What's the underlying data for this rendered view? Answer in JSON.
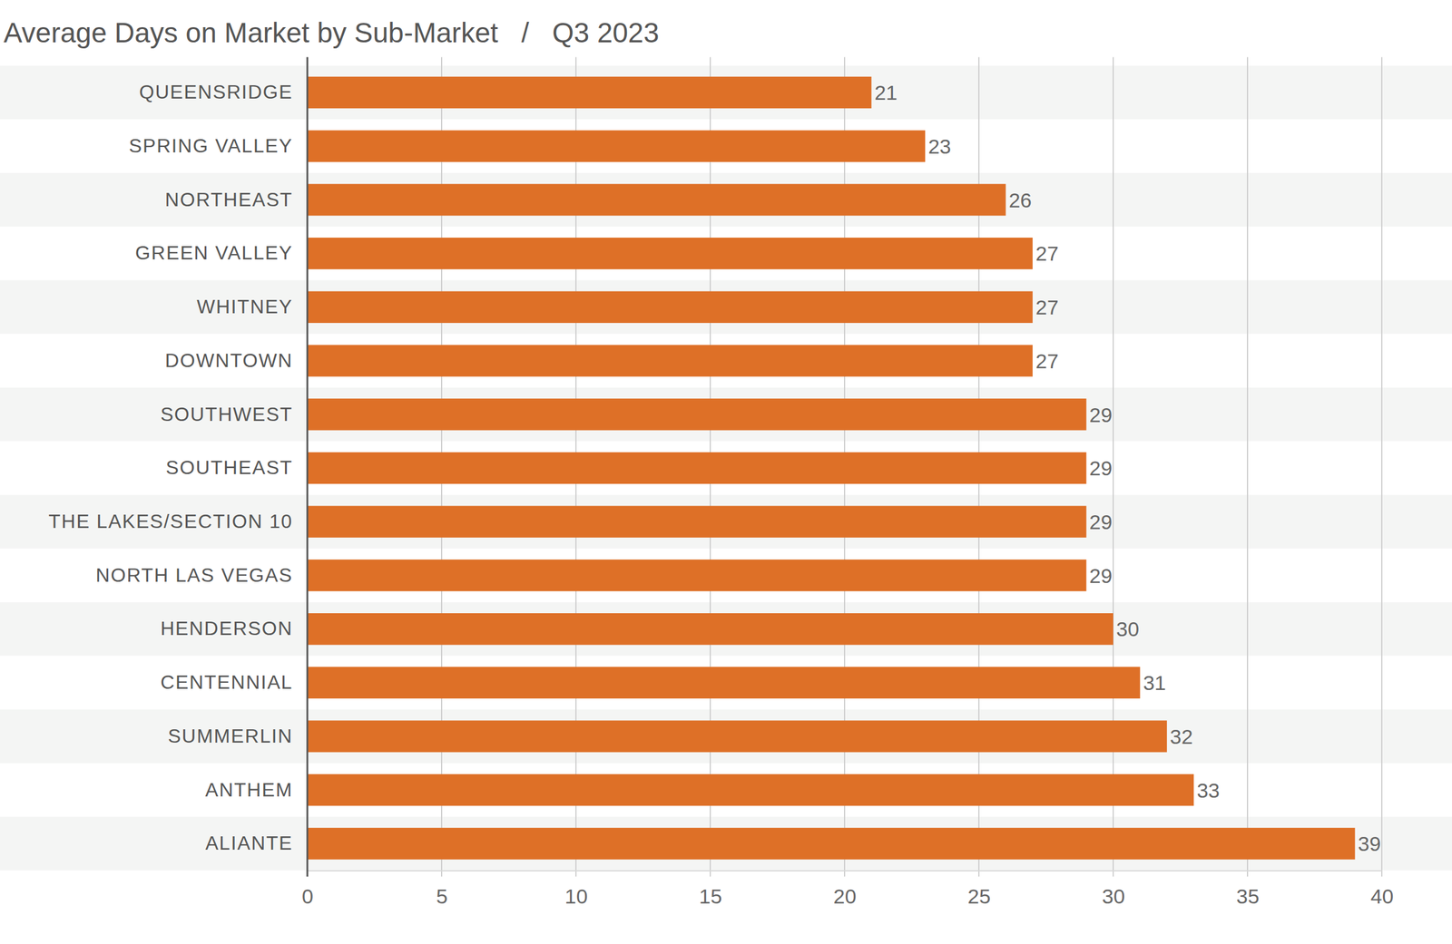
{
  "chart_data": {
    "type": "bar",
    "title": "Average Days on Market by Sub-Market   /   Q3 2023",
    "orientation": "horizontal",
    "categories": [
      "QUEENSRIDGE",
      "SPRING VALLEY",
      "NORTHEAST",
      "GREEN VALLEY",
      "WHITNEY",
      "DOWNTOWN",
      "SOUTHWEST",
      "SOUTHEAST",
      "THE LAKES/SECTION 10",
      "NORTH LAS VEGAS",
      "HENDERSON",
      "CENTENNIAL",
      "SUMMERLIN",
      "ANTHEM",
      "ALIANTE"
    ],
    "values": [
      21,
      23,
      26,
      27,
      27,
      27,
      29,
      29,
      29,
      29,
      30,
      31,
      32,
      33,
      39
    ],
    "color": "#de7027",
    "xlim": [
      0,
      40
    ],
    "xticks": [
      0,
      5,
      10,
      15,
      20,
      25,
      30,
      35,
      40
    ],
    "grid": true,
    "data_labels": true
  }
}
